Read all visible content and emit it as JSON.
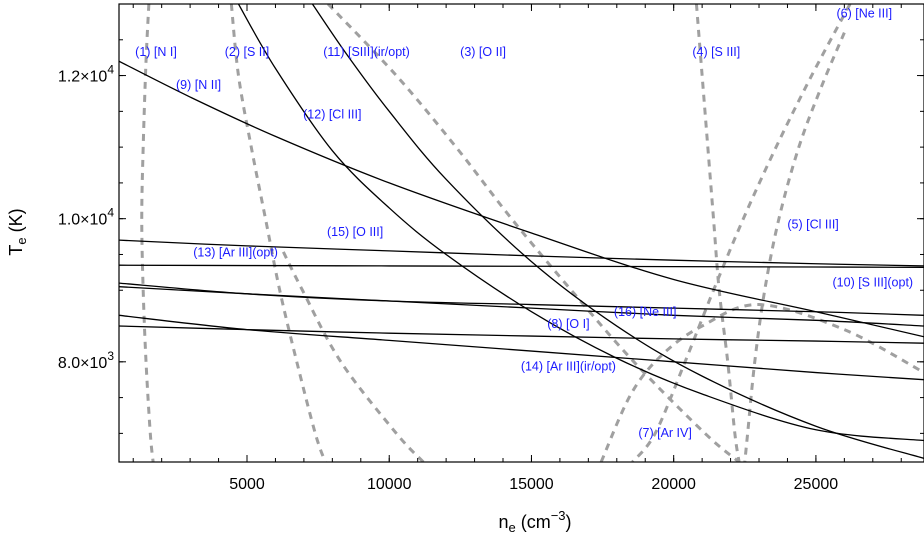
{
  "chart_data": {
    "type": "line",
    "title": "",
    "xlabel": "n",
    "xlabel_sub": "e",
    "xlabel_unit_open": " (cm",
    "xlabel_unit_sup": "−3",
    "xlabel_unit_close": ")",
    "ylabel": "T",
    "ylabel_sub": "e",
    "ylabel_unit": " (K)",
    "xlim": [
      500,
      28800
    ],
    "ylim": [
      6600,
      13000
    ],
    "grid": false,
    "legend": "none",
    "x_ticks": [
      {
        "value": 5000,
        "label": "5000"
      },
      {
        "value": 10000,
        "label": "10000"
      },
      {
        "value": 15000,
        "label": "15000"
      },
      {
        "value": 20000,
        "label": "20000"
      },
      {
        "value": 25000,
        "label": "25000"
      }
    ],
    "y_ticks": [
      {
        "value": 8000,
        "mant": "8.0",
        "exp": "3"
      },
      {
        "value": 10000,
        "mant": "1.0",
        "exp": "4"
      },
      {
        "value": 12000,
        "mant": "1.2",
        "exp": "4"
      }
    ],
    "density_diagnostics": [
      {
        "label": "(1) [N I]",
        "points": [
          [
            1550,
            13000
          ],
          [
            1450,
            12200
          ],
          [
            1350,
            11000
          ],
          [
            1300,
            10000
          ],
          [
            1350,
            9000
          ],
          [
            1450,
            8000
          ],
          [
            1600,
            7000
          ],
          [
            1700,
            6600
          ]
        ]
      },
      {
        "label": "(2) [S II]",
        "points": [
          [
            4450,
            13000
          ],
          [
            4700,
            12000
          ],
          [
            5150,
            11000
          ],
          [
            5650,
            10000
          ],
          [
            6150,
            9000
          ],
          [
            6750,
            8000
          ],
          [
            7400,
            7000
          ],
          [
            7750,
            6600
          ]
        ]
      },
      {
        "label": "(3) [O II]",
        "points": [
          [
            7850,
            13000
          ],
          [
            10250,
            12000
          ],
          [
            12350,
            11000
          ],
          [
            14300,
            10000
          ],
          [
            16400,
            9000
          ],
          [
            18600,
            8000
          ],
          [
            21100,
            7000
          ],
          [
            22300,
            6600
          ]
        ]
      },
      {
        "label": "(4) [S III]",
        "points": [
          [
            20800,
            13000
          ],
          [
            21000,
            12000
          ],
          [
            21200,
            11000
          ],
          [
            21400,
            10000
          ],
          [
            21600,
            9000
          ],
          [
            21900,
            8000
          ],
          [
            22150,
            7000
          ],
          [
            22300,
            6600
          ]
        ]
      },
      {
        "label": "(5) [Cl III]",
        "points": [
          [
            26000,
            12600
          ],
          [
            25200,
            11850
          ],
          [
            24400,
            11000
          ],
          [
            23700,
            10000
          ],
          [
            23200,
            9000
          ],
          [
            22850,
            8000
          ],
          [
            22600,
            7000
          ],
          [
            22500,
            6600
          ]
        ]
      },
      {
        "label": "(6) [Ne III]",
        "points": [
          [
            26200,
            13000
          ],
          [
            24850,
            12000
          ],
          [
            23600,
            11000
          ],
          [
            22450,
            10000
          ],
          [
            21400,
            9000
          ],
          [
            20400,
            8000
          ],
          [
            19350,
            7000
          ],
          [
            18550,
            6600
          ]
        ]
      },
      {
        "label": "(7) [Ar IV]",
        "points": [
          [
            11200,
            6600
          ],
          [
            10250,
            7000
          ],
          [
            8300,
            8000
          ],
          [
            6950,
            9000
          ],
          [
            6200,
            9600
          ]
        ]
      },
      {
        "label": "(7) [Ar IV]",
        "points": [
          [
            17450,
            6600
          ],
          [
            18500,
            7550
          ],
          [
            19600,
            8100
          ],
          [
            21000,
            8500
          ],
          [
            23000,
            8800
          ],
          [
            26000,
            8450
          ],
          [
            28800,
            7850
          ]
        ]
      }
    ],
    "temperature_diagnostics": [
      {
        "label": "(8) [O I]",
        "points": [
          [
            500,
            8500
          ],
          [
            5000,
            8450
          ],
          [
            10000,
            8400
          ],
          [
            15000,
            8360
          ],
          [
            20000,
            8320
          ],
          [
            25000,
            8290
          ],
          [
            28800,
            8260
          ]
        ]
      },
      {
        "label": "(9) [N II]",
        "points": [
          [
            500,
            12200
          ],
          [
            3000,
            11700
          ],
          [
            6000,
            11150
          ],
          [
            10000,
            10500
          ],
          [
            15000,
            9800
          ],
          [
            20000,
            9150
          ],
          [
            25000,
            8700
          ],
          [
            28800,
            8350
          ]
        ]
      },
      {
        "label": "(10) [S III](opt)",
        "points": [
          [
            500,
            9050
          ],
          [
            5000,
            8950
          ],
          [
            10000,
            8850
          ],
          [
            15000,
            8750
          ],
          [
            20000,
            8650
          ],
          [
            25000,
            8580
          ],
          [
            28800,
            8500
          ]
        ]
      },
      {
        "label": "(11) [SIII](ir/opt)",
        "points": [
          [
            7300,
            13000
          ],
          [
            8500,
            12300
          ],
          [
            10000,
            11500
          ],
          [
            12000,
            10550
          ],
          [
            15000,
            9400
          ],
          [
            18000,
            8500
          ],
          [
            21000,
            7800
          ],
          [
            25000,
            7100
          ],
          [
            28800,
            6650
          ]
        ]
      },
      {
        "label": "(12) [Cl III]",
        "points": [
          [
            4700,
            13000
          ],
          [
            6000,
            12100
          ],
          [
            8000,
            10950
          ],
          [
            10000,
            10150
          ],
          [
            12000,
            9500
          ],
          [
            15000,
            8700
          ],
          [
            18000,
            8050
          ],
          [
            21000,
            7550
          ],
          [
            25000,
            7050
          ],
          [
            28800,
            6900
          ]
        ]
      },
      {
        "label": "(13) [Ar III](opt)",
        "points": [
          [
            500,
            9350
          ],
          [
            5000,
            9345
          ],
          [
            10000,
            9340
          ],
          [
            15000,
            9335
          ],
          [
            20000,
            9330
          ],
          [
            25000,
            9325
          ],
          [
            28800,
            9320
          ]
        ]
      },
      {
        "label": "(14) [Ar III](ir/opt)",
        "points": [
          [
            500,
            8650
          ],
          [
            5000,
            8450
          ],
          [
            10000,
            8300
          ],
          [
            15000,
            8150
          ],
          [
            20000,
            8000
          ],
          [
            25000,
            7850
          ],
          [
            28800,
            7750
          ]
        ]
      },
      {
        "label": "(15) [O III]",
        "points": [
          [
            500,
            9700
          ],
          [
            5000,
            9620
          ],
          [
            10000,
            9550
          ],
          [
            15000,
            9480
          ],
          [
            20000,
            9420
          ],
          [
            25000,
            9370
          ],
          [
            28800,
            9340
          ]
        ]
      },
      {
        "label": "(16) [Ne III]",
        "points": [
          [
            500,
            9100
          ],
          [
            5000,
            8950
          ],
          [
            10000,
            8850
          ],
          [
            15000,
            8800
          ],
          [
            20000,
            8750
          ],
          [
            25000,
            8700
          ],
          [
            28800,
            8650
          ]
        ]
      }
    ],
    "annotations": [
      {
        "text": "(1) [N I]",
        "x": 1800,
        "y": 12270
      },
      {
        "text": "(2) [S II]",
        "x": 5000,
        "y": 12270
      },
      {
        "text": "(11) [SIII](ir/opt)",
        "x": 9200,
        "y": 12270
      },
      {
        "text": "(3) [O II]",
        "x": 13300,
        "y": 12270
      },
      {
        "text": "(4) [S III]",
        "x": 21500,
        "y": 12270
      },
      {
        "text": "(6) [Ne III]",
        "x": 26700,
        "y": 12810
      },
      {
        "text": "(9) [N II]",
        "x": 3300,
        "y": 11810
      },
      {
        "text": "(12) [Cl III]",
        "x": 8000,
        "y": 11400
      },
      {
        "text": "(5) [Cl III]",
        "x": 24900,
        "y": 9860
      },
      {
        "text": "(15) [O III]",
        "x": 8800,
        "y": 9760
      },
      {
        "text": "(13) [Ar III](opt)",
        "x": 4600,
        "y": 9470
      },
      {
        "text": "(10) [S III](opt)",
        "x": 27000,
        "y": 9050
      },
      {
        "text": "(16) [Ne III]",
        "x": 19000,
        "y": 8640
      },
      {
        "text": "(8) [O I]",
        "x": 16300,
        "y": 8470
      },
      {
        "text": "(14) [Ar III](ir/opt)",
        "x": 16300,
        "y": 7880
      },
      {
        "text": "(7) [Ar IV]",
        "x": 19700,
        "y": 6950
      }
    ],
    "colors": {
      "density_line": "#a0a0a0",
      "temperature_line": "#000000",
      "label_text": "#1a1aff"
    }
  }
}
